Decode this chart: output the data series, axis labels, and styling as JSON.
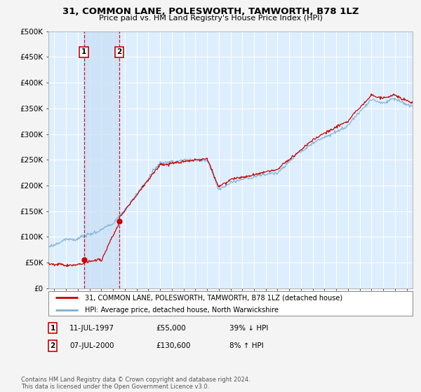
{
  "title": "31, COMMON LANE, POLESWORTH, TAMWORTH, B78 1LZ",
  "subtitle": "Price paid vs. HM Land Registry's House Price Index (HPI)",
  "legend_line1": "31, COMMON LANE, POLESWORTH, TAMWORTH, B78 1LZ (detached house)",
  "legend_line2": "HPI: Average price, detached house, North Warwickshire",
  "footer": "Contains HM Land Registry data © Crown copyright and database right 2024.\nThis data is licensed under the Open Government Licence v3.0.",
  "transactions": [
    {
      "label": "1",
      "date": "11-JUL-1997",
      "price": "£55,000",
      "hpi_rel": "39% ↓ HPI",
      "x_year": 1997.53,
      "price_val": 55000
    },
    {
      "label": "2",
      "date": "07-JUL-2000",
      "price": "£130,600",
      "hpi_rel": "8% ↑ HPI",
      "x_year": 2000.52,
      "price_val": 130600
    }
  ],
  "hpi_line_color": "#7ab0d4",
  "price_line_color": "#cc0000",
  "fig_bg_color": "#f4f4f4",
  "plot_bg_color": "#ddeeff",
  "shade_color": "#c8dff5",
  "grid_color": "#ffffff",
  "vline_color": "#cc0000",
  "ylim": [
    0,
    500000
  ],
  "yticks": [
    0,
    50000,
    100000,
    150000,
    200000,
    250000,
    300000,
    350000,
    400000,
    450000,
    500000
  ],
  "xlim_start": 1994.5,
  "xlim_end": 2025.5,
  "xticks": [
    1995,
    1996,
    1997,
    1998,
    1999,
    2000,
    2001,
    2002,
    2003,
    2004,
    2005,
    2006,
    2007,
    2008,
    2009,
    2010,
    2011,
    2012,
    2013,
    2014,
    2015,
    2016,
    2017,
    2018,
    2019,
    2020,
    2021,
    2022,
    2023,
    2024,
    2025
  ]
}
